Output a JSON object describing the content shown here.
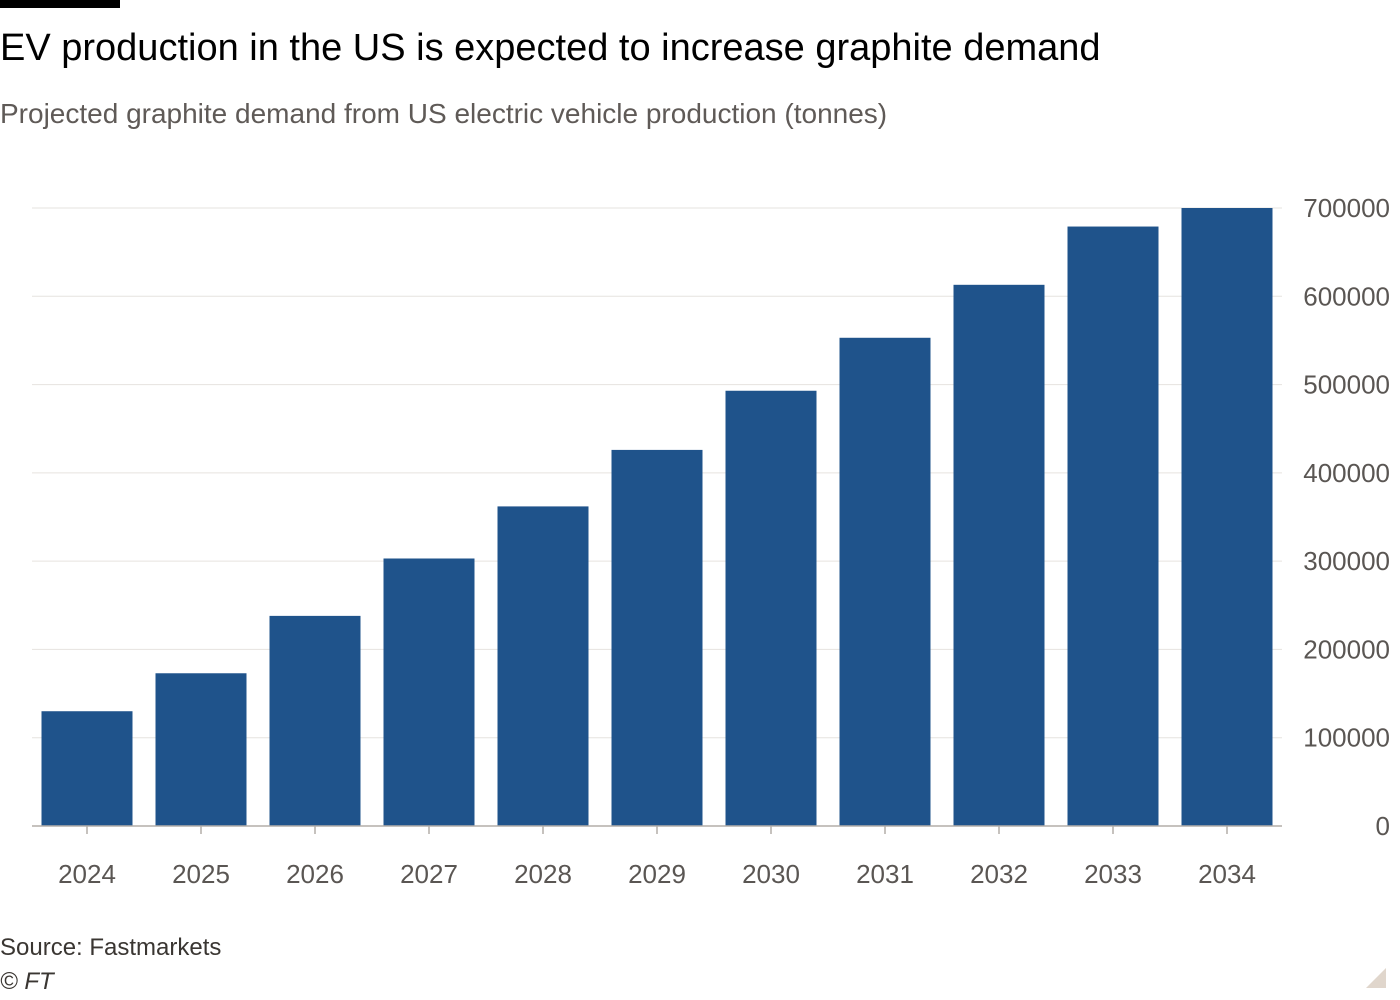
{
  "header": {
    "title": "EV production in the US is expected to increase graphite demand",
    "subtitle": "Projected graphite demand from US electric vehicle production (tonnes)"
  },
  "footer": {
    "source": "Source: Fastmarkets",
    "credit": "© FT"
  },
  "colors": {
    "bar": "#1f538b",
    "grid": "#e6e3df",
    "axis": "#b3aea9",
    "tick_label": "#5a5653"
  },
  "chart_data": {
    "type": "bar",
    "title": "EV production in the US is expected to increase graphite demand",
    "subtitle": "Projected graphite demand from US electric vehicle production (tonnes)",
    "categories": [
      "2024",
      "2025",
      "2026",
      "2027",
      "2028",
      "2029",
      "2030",
      "2031",
      "2032",
      "2033",
      "2034"
    ],
    "values": [
      130000,
      173000,
      238000,
      303000,
      362000,
      426000,
      493000,
      553000,
      613000,
      679000,
      700000
    ],
    "xlabel": "",
    "ylabel": "",
    "ylim": [
      0,
      700000
    ],
    "yticks": [
      0,
      100000,
      200000,
      300000,
      400000,
      500000,
      600000,
      700000
    ],
    "ytick_labels": [
      "0",
      "100000",
      "200000",
      "300000",
      "400000",
      "500000",
      "600000",
      "700000"
    ],
    "y_axis_side": "right",
    "grid": true,
    "legend": "none"
  }
}
